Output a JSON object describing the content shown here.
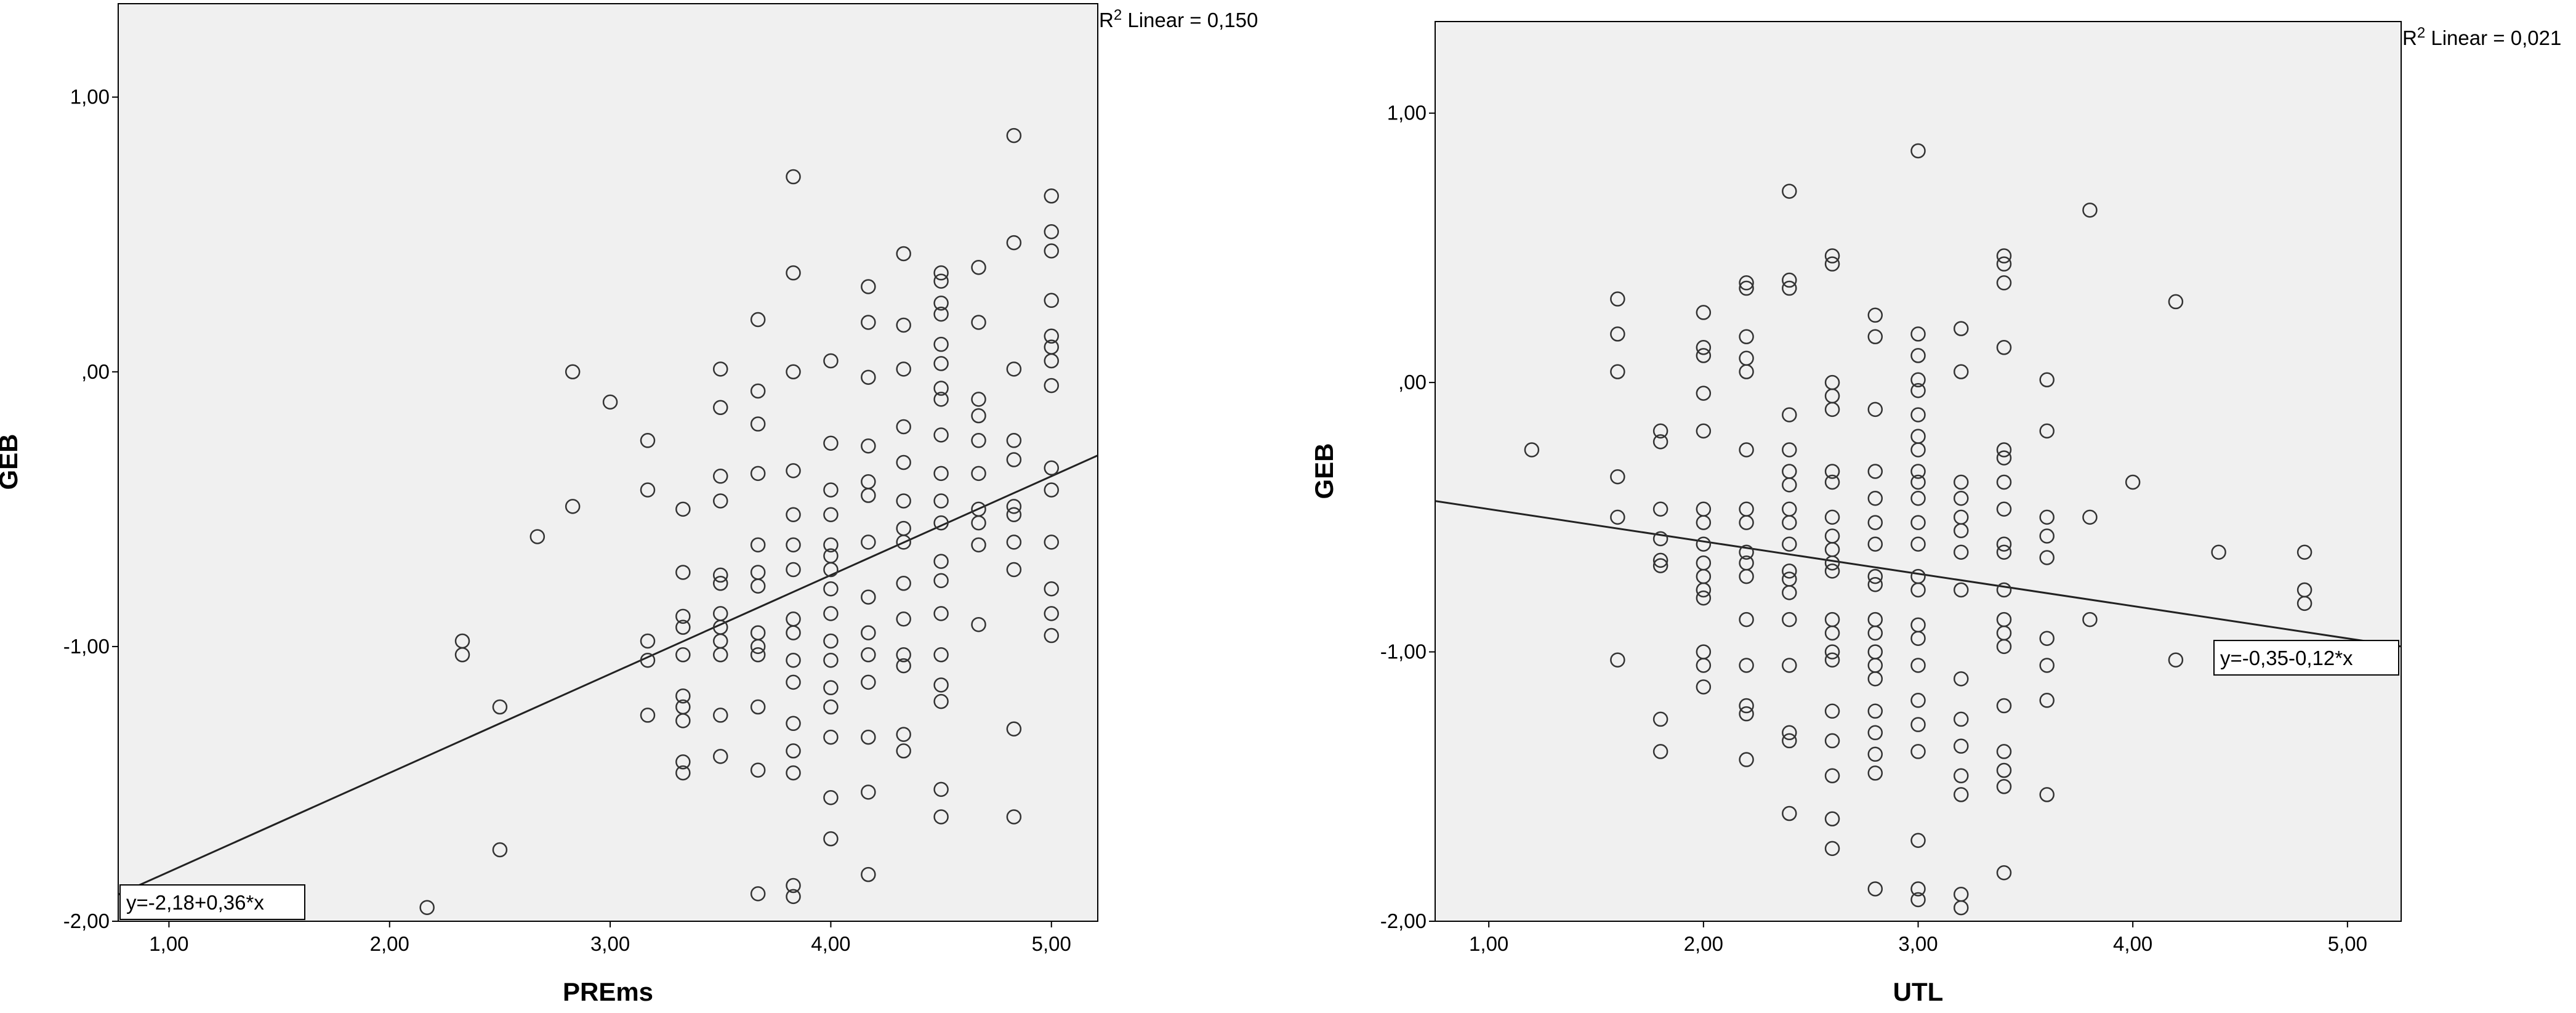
{
  "charts": [
    {
      "type": "scatter",
      "xlabel": "PREms",
      "ylabel": "GEB",
      "xlim": [
        0.77,
        5.21
      ],
      "ylim": [
        -2.0,
        1.34
      ],
      "xticks": [
        {
          "v": 1,
          "t": "1,00"
        },
        {
          "v": 2,
          "t": "2,00"
        },
        {
          "v": 3,
          "t": "3,00"
        },
        {
          "v": 4,
          "t": "4,00"
        },
        {
          "v": 5,
          "t": "5,00"
        }
      ],
      "yticks": [
        {
          "v": 1,
          "t": "1,00"
        },
        {
          "v": 0,
          "t": ",00"
        },
        {
          "v": -1,
          "t": "-1,00"
        },
        {
          "v": -2,
          "t": "-2,00"
        }
      ],
      "fit": {
        "intercept": -2.18,
        "slope": 0.36,
        "label": "y=-2,18+0,36*x"
      },
      "r2": {
        "prefix": "R",
        "sup": "2",
        "text": " Linear = 0,150"
      },
      "points": [
        [
          2.17,
          -1.95
        ],
        [
          2.33,
          -0.98
        ],
        [
          2.33,
          -1.03
        ],
        [
          2.5,
          -1.22
        ],
        [
          2.5,
          -1.74
        ],
        [
          2.67,
          -0.6
        ],
        [
          2.83,
          0.0
        ],
        [
          2.83,
          -0.49
        ],
        [
          3.0,
          -0.11
        ],
        [
          3.17,
          -0.25
        ],
        [
          3.17,
          -0.43
        ],
        [
          3.17,
          -0.98
        ],
        [
          3.17,
          -1.05
        ],
        [
          3.17,
          -1.25
        ],
        [
          3.33,
          -0.5
        ],
        [
          3.33,
          -0.73
        ],
        [
          3.33,
          -0.89
        ],
        [
          3.33,
          -0.93
        ],
        [
          3.33,
          -1.03
        ],
        [
          3.33,
          -1.18
        ],
        [
          3.33,
          -1.22
        ],
        [
          3.33,
          -1.27
        ],
        [
          3.33,
          -1.42
        ],
        [
          3.33,
          -1.46
        ],
        [
          3.5,
          0.01
        ],
        [
          3.5,
          -0.13
        ],
        [
          3.5,
          -0.38
        ],
        [
          3.5,
          -0.47
        ],
        [
          3.5,
          -0.74
        ],
        [
          3.5,
          -0.77
        ],
        [
          3.5,
          -0.88
        ],
        [
          3.5,
          -0.93
        ],
        [
          3.5,
          -0.98
        ],
        [
          3.5,
          -1.03
        ],
        [
          3.5,
          -1.25
        ],
        [
          3.5,
          -1.4
        ],
        [
          3.67,
          0.19
        ],
        [
          3.67,
          -0.07
        ],
        [
          3.67,
          -0.19
        ],
        [
          3.67,
          -0.37
        ],
        [
          3.67,
          -0.63
        ],
        [
          3.67,
          -0.73
        ],
        [
          3.67,
          -0.78
        ],
        [
          3.67,
          -0.95
        ],
        [
          3.67,
          -1.0
        ],
        [
          3.67,
          -1.03
        ],
        [
          3.67,
          -1.22
        ],
        [
          3.67,
          -1.45
        ],
        [
          3.67,
          -1.9
        ],
        [
          3.83,
          0.71
        ],
        [
          3.83,
          0.36
        ],
        [
          3.83,
          0.0
        ],
        [
          3.83,
          -0.36
        ],
        [
          3.83,
          -0.52
        ],
        [
          3.83,
          -0.63
        ],
        [
          3.83,
          -0.72
        ],
        [
          3.83,
          -0.9
        ],
        [
          3.83,
          -0.95
        ],
        [
          3.83,
          -1.05
        ],
        [
          3.83,
          -1.13
        ],
        [
          3.83,
          -1.28
        ],
        [
          3.83,
          -1.38
        ],
        [
          3.83,
          -1.46
        ],
        [
          3.83,
          -1.87
        ],
        [
          3.83,
          -1.91
        ],
        [
          4.0,
          0.04
        ],
        [
          4.0,
          -0.26
        ],
        [
          4.0,
          -0.43
        ],
        [
          4.0,
          -0.52
        ],
        [
          4.0,
          -0.63
        ],
        [
          4.0,
          -0.67
        ],
        [
          4.0,
          -0.72
        ],
        [
          4.0,
          -0.79
        ],
        [
          4.0,
          -0.88
        ],
        [
          4.0,
          -0.98
        ],
        [
          4.0,
          -1.05
        ],
        [
          4.0,
          -1.15
        ],
        [
          4.0,
          -1.22
        ],
        [
          4.0,
          -1.33
        ],
        [
          4.0,
          -1.55
        ],
        [
          4.0,
          -1.7
        ],
        [
          4.17,
          0.31
        ],
        [
          4.17,
          0.18
        ],
        [
          4.17,
          -0.02
        ],
        [
          4.17,
          -0.27
        ],
        [
          4.17,
          -0.4
        ],
        [
          4.17,
          -0.45
        ],
        [
          4.17,
          -0.62
        ],
        [
          4.17,
          -0.82
        ],
        [
          4.17,
          -0.95
        ],
        [
          4.17,
          -1.03
        ],
        [
          4.17,
          -1.13
        ],
        [
          4.17,
          -1.33
        ],
        [
          4.17,
          -1.53
        ],
        [
          4.17,
          -1.83
        ],
        [
          4.33,
          0.43
        ],
        [
          4.33,
          0.17
        ],
        [
          4.33,
          0.01
        ],
        [
          4.33,
          -0.2
        ],
        [
          4.33,
          -0.33
        ],
        [
          4.33,
          -0.47
        ],
        [
          4.33,
          -0.57
        ],
        [
          4.33,
          -0.62
        ],
        [
          4.33,
          -0.77
        ],
        [
          4.33,
          -0.9
        ],
        [
          4.33,
          -1.03
        ],
        [
          4.33,
          -1.07
        ],
        [
          4.33,
          -1.32
        ],
        [
          4.33,
          -1.38
        ],
        [
          4.5,
          0.36
        ],
        [
          4.5,
          0.33
        ],
        [
          4.5,
          0.25
        ],
        [
          4.5,
          0.21
        ],
        [
          4.5,
          0.1
        ],
        [
          4.5,
          0.03
        ],
        [
          4.5,
          -0.06
        ],
        [
          4.5,
          -0.1
        ],
        [
          4.5,
          -0.23
        ],
        [
          4.5,
          -0.37
        ],
        [
          4.5,
          -0.47
        ],
        [
          4.5,
          -0.55
        ],
        [
          4.5,
          -0.69
        ],
        [
          4.5,
          -0.76
        ],
        [
          4.5,
          -0.88
        ],
        [
          4.5,
          -1.03
        ],
        [
          4.5,
          -1.14
        ],
        [
          4.5,
          -1.2
        ],
        [
          4.5,
          -1.52
        ],
        [
          4.5,
          -1.62
        ],
        [
          4.67,
          0.38
        ],
        [
          4.67,
          0.18
        ],
        [
          4.67,
          -0.1
        ],
        [
          4.67,
          -0.16
        ],
        [
          4.67,
          -0.25
        ],
        [
          4.67,
          -0.37
        ],
        [
          4.67,
          -0.5
        ],
        [
          4.67,
          -0.55
        ],
        [
          4.67,
          -0.63
        ],
        [
          4.67,
          -0.92
        ],
        [
          4.83,
          0.86
        ],
        [
          4.83,
          0.47
        ],
        [
          4.83,
          0.01
        ],
        [
          4.83,
          -0.25
        ],
        [
          4.83,
          -0.32
        ],
        [
          4.83,
          -0.49
        ],
        [
          4.83,
          -0.52
        ],
        [
          4.83,
          -0.62
        ],
        [
          4.83,
          -0.72
        ],
        [
          4.83,
          -1.3
        ],
        [
          4.83,
          -1.62
        ],
        [
          5.0,
          0.64
        ],
        [
          5.0,
          0.51
        ],
        [
          5.0,
          0.44
        ],
        [
          5.0,
          0.26
        ],
        [
          5.0,
          0.13
        ],
        [
          5.0,
          0.09
        ],
        [
          5.0,
          0.04
        ],
        [
          5.0,
          -0.05
        ],
        [
          5.0,
          -0.35
        ],
        [
          5.0,
          -0.43
        ],
        [
          5.0,
          -0.62
        ],
        [
          5.0,
          -0.79
        ],
        [
          5.0,
          -0.88
        ],
        [
          5.0,
          -0.96
        ]
      ]
    },
    {
      "type": "scatter",
      "xlabel": "UTL",
      "ylabel": "GEB",
      "xlim": [
        0.75,
        5.25
      ],
      "ylim": [
        -2.0,
        1.34
      ],
      "xticks": [
        {
          "v": 1,
          "t": "1,00"
        },
        {
          "v": 2,
          "t": "2,00"
        },
        {
          "v": 3,
          "t": "3,00"
        },
        {
          "v": 4,
          "t": "4,00"
        },
        {
          "v": 5,
          "t": "5,00"
        }
      ],
      "yticks": [
        {
          "v": 1,
          "t": "1,00"
        },
        {
          "v": 0,
          "t": ",00"
        },
        {
          "v": -1,
          "t": "-1,00"
        },
        {
          "v": -2,
          "t": "-2,00"
        }
      ],
      "fit": {
        "intercept": -0.35,
        "slope": -0.12,
        "label": "y=-0,35-0,12*x"
      },
      "r2": {
        "prefix": "R",
        "sup": "2",
        "text": " Linear = 0,021"
      },
      "points": [
        [
          1.2,
          -0.25
        ],
        [
          1.6,
          0.31
        ],
        [
          1.6,
          0.18
        ],
        [
          1.6,
          0.04
        ],
        [
          1.6,
          -0.35
        ],
        [
          1.6,
          -0.5
        ],
        [
          1.6,
          -1.03
        ],
        [
          1.8,
          -0.18
        ],
        [
          1.8,
          -0.22
        ],
        [
          1.8,
          -0.47
        ],
        [
          1.8,
          -0.58
        ],
        [
          1.8,
          -0.66
        ],
        [
          1.8,
          -0.68
        ],
        [
          1.8,
          -1.25
        ],
        [
          1.8,
          -1.37
        ],
        [
          2.0,
          0.26
        ],
        [
          2.0,
          0.13
        ],
        [
          2.0,
          0.1
        ],
        [
          2.0,
          -0.04
        ],
        [
          2.0,
          -0.18
        ],
        [
          2.0,
          -0.47
        ],
        [
          2.0,
          -0.52
        ],
        [
          2.0,
          -0.6
        ],
        [
          2.0,
          -0.67
        ],
        [
          2.0,
          -0.72
        ],
        [
          2.0,
          -0.77
        ],
        [
          2.0,
          -0.8
        ],
        [
          2.0,
          -1.0
        ],
        [
          2.0,
          -1.05
        ],
        [
          2.0,
          -1.13
        ],
        [
          2.2,
          0.37
        ],
        [
          2.2,
          0.35
        ],
        [
          2.2,
          0.17
        ],
        [
          2.2,
          0.09
        ],
        [
          2.2,
          0.04
        ],
        [
          2.2,
          -0.25
        ],
        [
          2.2,
          -0.47
        ],
        [
          2.2,
          -0.52
        ],
        [
          2.2,
          -0.63
        ],
        [
          2.2,
          -0.67
        ],
        [
          2.2,
          -0.72
        ],
        [
          2.2,
          -0.88
        ],
        [
          2.2,
          -1.05
        ],
        [
          2.2,
          -1.2
        ],
        [
          2.2,
          -1.23
        ],
        [
          2.2,
          -1.4
        ],
        [
          2.4,
          0.71
        ],
        [
          2.4,
          0.38
        ],
        [
          2.4,
          0.35
        ],
        [
          2.4,
          -0.12
        ],
        [
          2.4,
          -0.25
        ],
        [
          2.4,
          -0.33
        ],
        [
          2.4,
          -0.38
        ],
        [
          2.4,
          -0.47
        ],
        [
          2.4,
          -0.52
        ],
        [
          2.4,
          -0.6
        ],
        [
          2.4,
          -0.7
        ],
        [
          2.4,
          -0.73
        ],
        [
          2.4,
          -0.78
        ],
        [
          2.4,
          -0.88
        ],
        [
          2.4,
          -1.05
        ],
        [
          2.4,
          -1.3
        ],
        [
          2.4,
          -1.33
        ],
        [
          2.4,
          -1.6
        ],
        [
          2.6,
          0.47
        ],
        [
          2.6,
          0.44
        ],
        [
          2.6,
          0.0
        ],
        [
          2.6,
          -0.05
        ],
        [
          2.6,
          -0.1
        ],
        [
          2.6,
          -0.33
        ],
        [
          2.6,
          -0.37
        ],
        [
          2.6,
          -0.5
        ],
        [
          2.6,
          -0.57
        ],
        [
          2.6,
          -0.62
        ],
        [
          2.6,
          -0.67
        ],
        [
          2.6,
          -0.7
        ],
        [
          2.6,
          -0.88
        ],
        [
          2.6,
          -0.93
        ],
        [
          2.6,
          -1.0
        ],
        [
          2.6,
          -1.03
        ],
        [
          2.6,
          -1.22
        ],
        [
          2.6,
          -1.33
        ],
        [
          2.6,
          -1.46
        ],
        [
          2.6,
          -1.62
        ],
        [
          2.6,
          -1.73
        ],
        [
          2.8,
          0.25
        ],
        [
          2.8,
          0.17
        ],
        [
          2.8,
          -0.1
        ],
        [
          2.8,
          -0.33
        ],
        [
          2.8,
          -0.43
        ],
        [
          2.8,
          -0.52
        ],
        [
          2.8,
          -0.6
        ],
        [
          2.8,
          -0.72
        ],
        [
          2.8,
          -0.75
        ],
        [
          2.8,
          -0.88
        ],
        [
          2.8,
          -0.93
        ],
        [
          2.8,
          -1.0
        ],
        [
          2.8,
          -1.05
        ],
        [
          2.8,
          -1.1
        ],
        [
          2.8,
          -1.22
        ],
        [
          2.8,
          -1.3
        ],
        [
          2.8,
          -1.38
        ],
        [
          2.8,
          -1.45
        ],
        [
          2.8,
          -1.88
        ],
        [
          3.0,
          0.86
        ],
        [
          3.0,
          0.18
        ],
        [
          3.0,
          0.1
        ],
        [
          3.0,
          0.01
        ],
        [
          3.0,
          -0.03
        ],
        [
          3.0,
          -0.12
        ],
        [
          3.0,
          -0.2
        ],
        [
          3.0,
          -0.25
        ],
        [
          3.0,
          -0.33
        ],
        [
          3.0,
          -0.37
        ],
        [
          3.0,
          -0.43
        ],
        [
          3.0,
          -0.52
        ],
        [
          3.0,
          -0.6
        ],
        [
          3.0,
          -0.72
        ],
        [
          3.0,
          -0.77
        ],
        [
          3.0,
          -0.9
        ],
        [
          3.0,
          -0.95
        ],
        [
          3.0,
          -1.05
        ],
        [
          3.0,
          -1.18
        ],
        [
          3.0,
          -1.27
        ],
        [
          3.0,
          -1.37
        ],
        [
          3.0,
          -1.7
        ],
        [
          3.0,
          -1.88
        ],
        [
          3.0,
          -1.92
        ],
        [
          3.2,
          0.2
        ],
        [
          3.2,
          0.04
        ],
        [
          3.2,
          -0.37
        ],
        [
          3.2,
          -0.43
        ],
        [
          3.2,
          -0.5
        ],
        [
          3.2,
          -0.55
        ],
        [
          3.2,
          -0.63
        ],
        [
          3.2,
          -0.77
        ],
        [
          3.2,
          -1.1
        ],
        [
          3.2,
          -1.25
        ],
        [
          3.2,
          -1.35
        ],
        [
          3.2,
          -1.46
        ],
        [
          3.2,
          -1.53
        ],
        [
          3.2,
          -1.9
        ],
        [
          3.2,
          -1.95
        ],
        [
          3.4,
          0.47
        ],
        [
          3.4,
          0.44
        ],
        [
          3.4,
          0.37
        ],
        [
          3.4,
          0.13
        ],
        [
          3.4,
          -0.25
        ],
        [
          3.4,
          -0.28
        ],
        [
          3.4,
          -0.37
        ],
        [
          3.4,
          -0.47
        ],
        [
          3.4,
          -0.6
        ],
        [
          3.4,
          -0.63
        ],
        [
          3.4,
          -0.77
        ],
        [
          3.4,
          -0.88
        ],
        [
          3.4,
          -0.93
        ],
        [
          3.4,
          -0.98
        ],
        [
          3.4,
          -1.2
        ],
        [
          3.4,
          -1.37
        ],
        [
          3.4,
          -1.44
        ],
        [
          3.4,
          -1.5
        ],
        [
          3.4,
          -1.82
        ],
        [
          3.6,
          0.01
        ],
        [
          3.6,
          -0.18
        ],
        [
          3.6,
          -0.5
        ],
        [
          3.6,
          -0.57
        ],
        [
          3.6,
          -0.65
        ],
        [
          3.6,
          -0.95
        ],
        [
          3.6,
          -1.05
        ],
        [
          3.6,
          -1.18
        ],
        [
          3.6,
          -1.53
        ],
        [
          3.8,
          0.64
        ],
        [
          3.8,
          -0.5
        ],
        [
          3.8,
          -0.88
        ],
        [
          4.0,
          -0.37
        ],
        [
          4.2,
          0.3
        ],
        [
          4.2,
          -1.03
        ],
        [
          4.4,
          -0.63
        ],
        [
          4.8,
          -0.63
        ],
        [
          4.8,
          -0.77
        ],
        [
          4.8,
          -0.82
        ]
      ]
    }
  ]
}
